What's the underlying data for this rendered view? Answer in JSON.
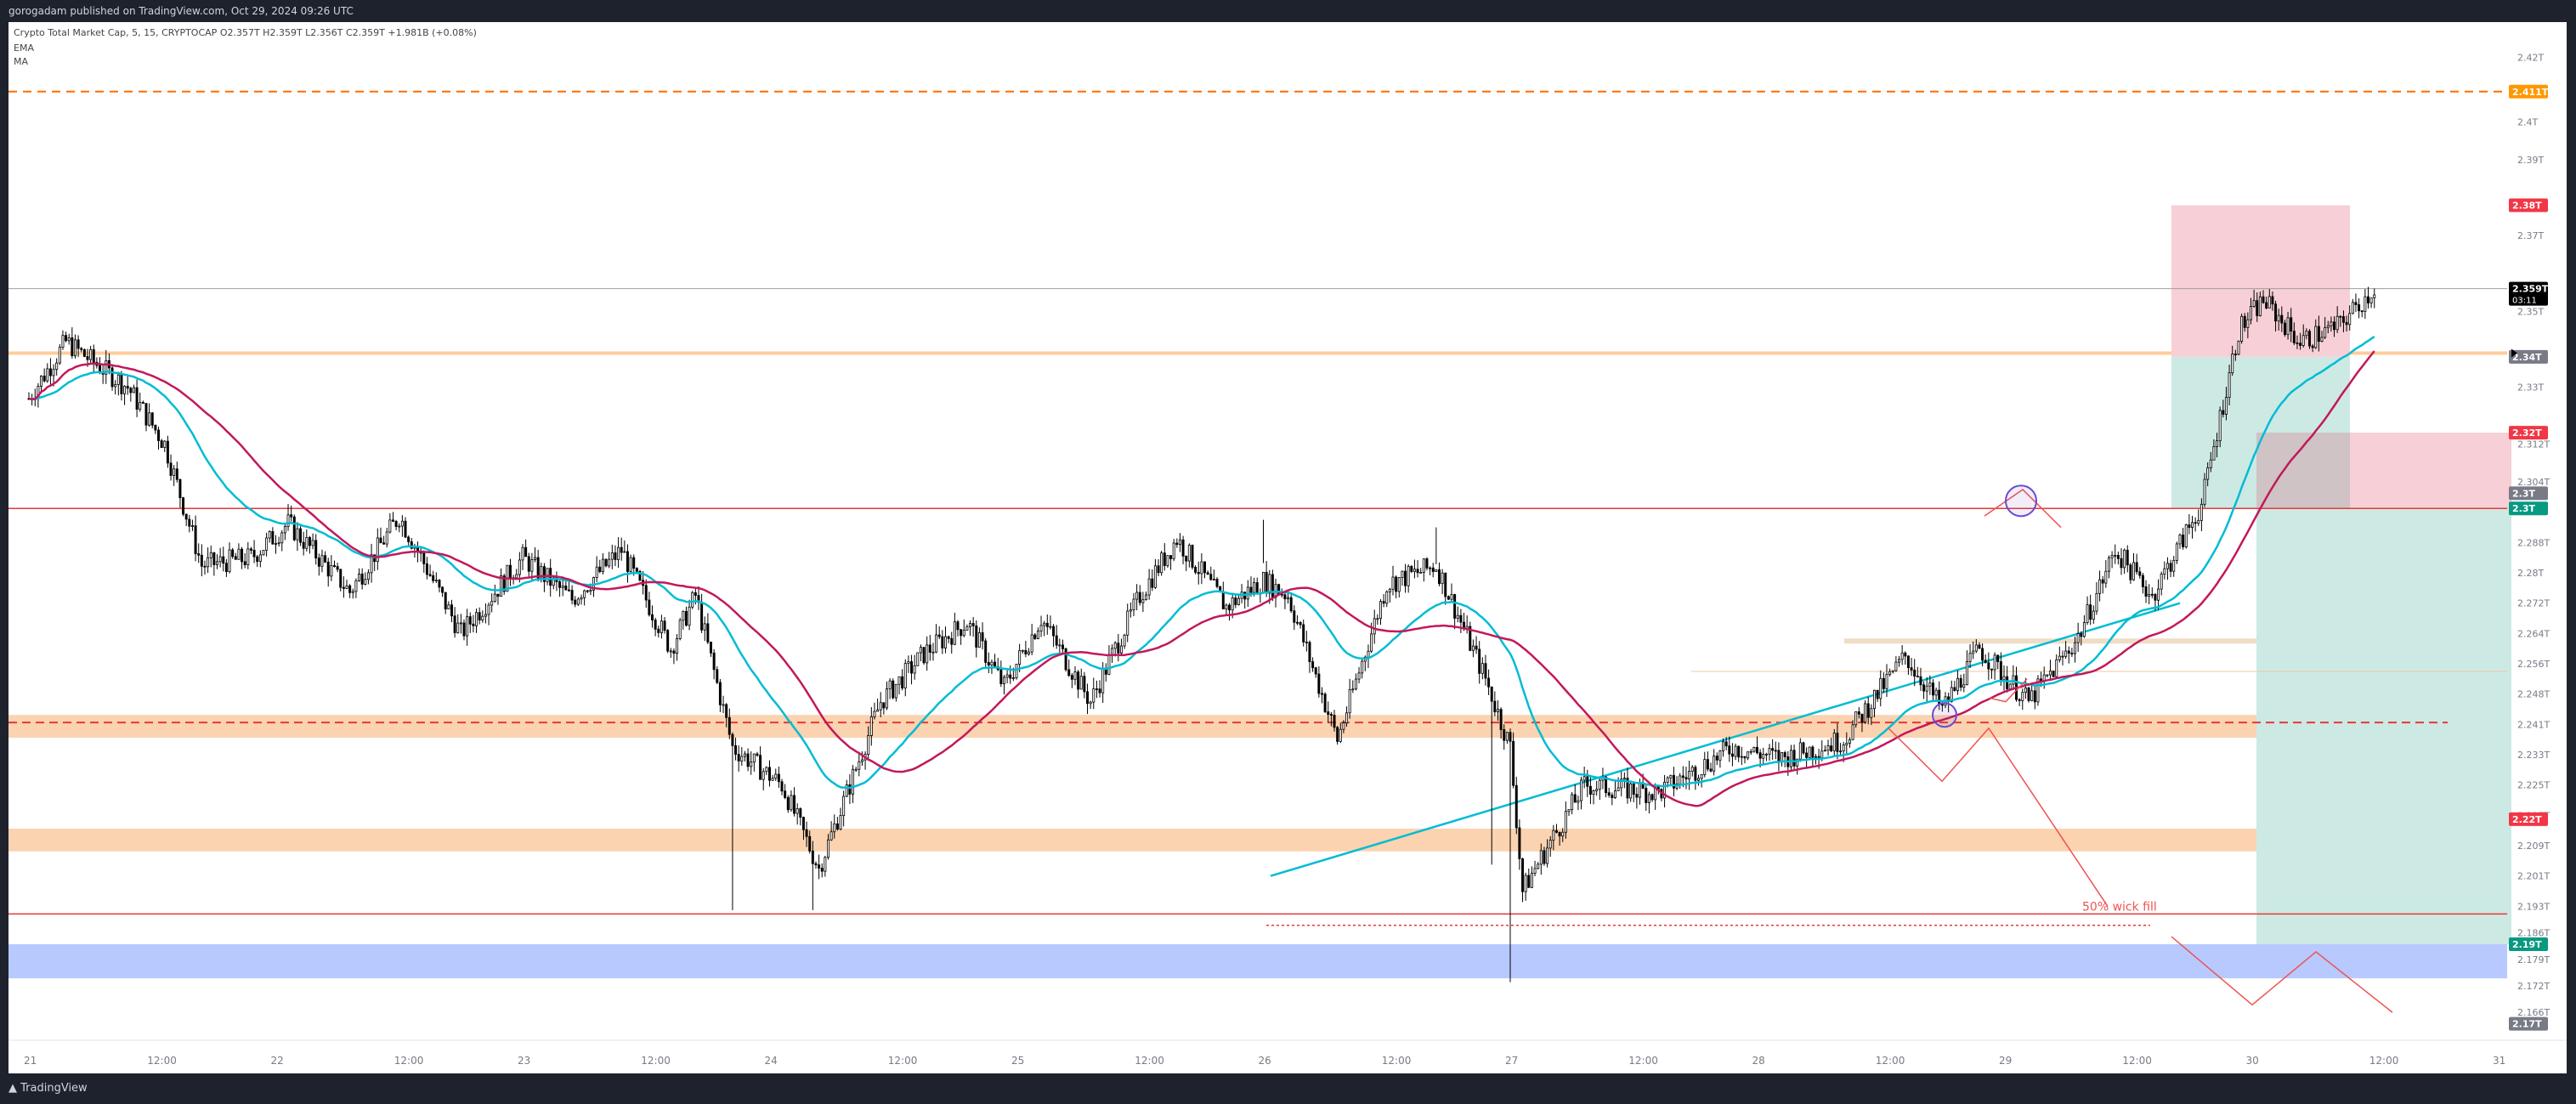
{
  "header": {
    "published": "gorogadam published on TradingView.com, Oct 29, 2024 09:26 UTC"
  },
  "legend": {
    "symbol_line": "Crypto Total Market Cap, 5, 15, CRYPTOCAP",
    "ohlc": "O2.357T H2.359T L2.356T C2.359T +1.981B (+0.08%)",
    "indicators": [
      "EMA",
      "MA"
    ]
  },
  "footer": {
    "brand": "TradingView"
  },
  "colors": {
    "up": "#ffffff",
    "candle_stroke": "#000000",
    "ema": "#00bcd4",
    "ma": "#c2185b",
    "resistance": "#ff6d00",
    "zone_orange": "#fbd3b0",
    "zone_blue": "#b7c9ff",
    "stop": "#f7cfd6",
    "target": "#cde9e4"
  },
  "chart_data": {
    "type": "candlestick",
    "ylim": [
      2.162,
      2.428
    ],
    "x_ticks": [
      "21",
      "12:00",
      "22",
      "12:00",
      "23",
      "12:00",
      "24",
      "12:00",
      "25",
      "12:00",
      "26",
      "12:00",
      "27",
      "12:00",
      "28",
      "12:00",
      "29",
      "12:00",
      "30",
      "12:00",
      "31"
    ],
    "y_ticks": [
      "2.42T",
      "2.4T",
      "2.39T",
      "2.37T",
      "2.35T",
      "2.33T",
      "2.312T",
      "2.304T",
      "2.288T",
      "2.28T",
      "2.272T",
      "2.264T",
      "2.256T",
      "2.248T",
      "2.241T",
      "2.233T",
      "2.225T",
      "2.217T",
      "2.209T",
      "2.201T",
      "2.193T",
      "2.186T",
      "2.179T",
      "2.172T",
      "2.166T"
    ],
    "price_labels": [
      {
        "text": "2.411T",
        "value": 2.411,
        "color": "#ff9800"
      },
      {
        "text": "2.38T",
        "value": 2.381,
        "color": "#f23645"
      },
      {
        "text": "2.359T",
        "sub": "03:11",
        "value": 2.359,
        "color": "#000000"
      },
      {
        "text": "2.34T",
        "value": 2.341,
        "color": "#787b86"
      },
      {
        "text": "2.32T",
        "value": 2.321,
        "color": "#f23645"
      },
      {
        "text": "2.3T",
        "value": 2.305,
        "color": "#787b86"
      },
      {
        "text": "2.3T",
        "value": 2.301,
        "color": "#089981"
      },
      {
        "text": "2.22T",
        "value": 2.219,
        "color": "#f23645"
      },
      {
        "text": "2.19T",
        "value": 2.186,
        "color": "#089981"
      },
      {
        "text": "2.17T",
        "value": 2.165,
        "color": "#787b86"
      }
    ],
    "annotation": "50% wick fill",
    "ohlc_anchors": {
      "days_from_oct21": [
        0,
        0.15,
        0.4,
        0.55,
        0.7,
        0.9,
        1.05,
        1.3,
        1.5,
        1.75,
        2.0,
        2.2,
        2.4,
        2.6,
        2.7,
        2.85,
        3.05,
        3.2,
        3.45,
        3.63,
        3.8,
        3.95,
        4.1,
        4.3,
        4.5,
        4.65,
        4.85,
        5.0,
        5.1,
        5.3,
        5.5,
        5.7,
        5.9,
        6.0,
        6.05,
        6.1,
        6.3,
        6.6,
        6.9,
        7.1,
        7.35,
        7.6,
        7.75,
        7.9,
        8.1,
        8.3,
        8.45,
        8.6,
        8.8,
        8.95,
        9.05,
        9.2,
        9.35,
        9.5
      ],
      "close": [
        2.33,
        2.345,
        2.333,
        2.318,
        2.286,
        2.288,
        2.297,
        2.279,
        2.299,
        2.268,
        2.288,
        2.277,
        2.29,
        2.264,
        2.278,
        2.238,
        2.228,
        2.206,
        2.25,
        2.263,
        2.271,
        2.254,
        2.272,
        2.25,
        2.278,
        2.293,
        2.275,
        2.282,
        2.278,
        2.24,
        2.281,
        2.286,
        2.256,
        2.238,
        2.2,
        2.206,
        2.228,
        2.226,
        2.238,
        2.235,
        2.24,
        2.262,
        2.248,
        2.264,
        2.25,
        2.267,
        2.29,
        2.278,
        2.302,
        2.348,
        2.356,
        2.345,
        2.349,
        2.359
      ]
    }
  }
}
